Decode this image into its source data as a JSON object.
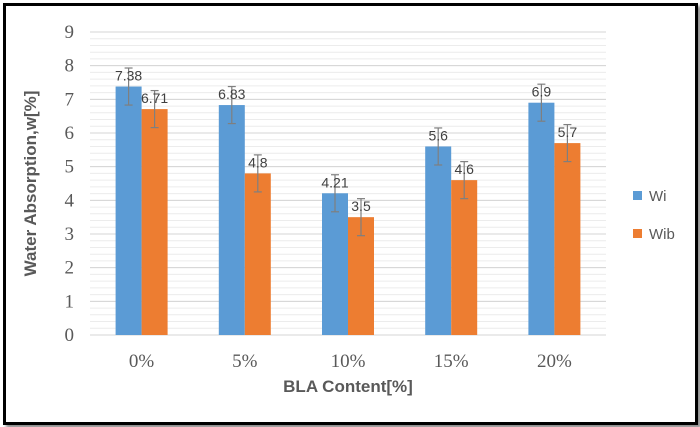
{
  "chart_data": {
    "type": "bar",
    "categories": [
      "0%",
      "5%",
      "10%",
      "15%",
      "20%"
    ],
    "series": [
      {
        "name": "Wi",
        "values": [
          7.38,
          6.83,
          4.21,
          5.6,
          6.9
        ],
        "labels": [
          "7.38",
          "6.83",
          "4.21",
          "5.6",
          "6.9"
        ],
        "error": [
          0.55,
          0.55,
          0.55,
          0.55,
          0.55
        ],
        "color": "#5b9bd5"
      },
      {
        "name": "Wib",
        "values": [
          6.71,
          4.8,
          3.5,
          4.6,
          5.7
        ],
        "labels": [
          "6.71",
          "4.8",
          "3.5",
          "4.6",
          "5.7"
        ],
        "error": [
          0.55,
          0.55,
          0.55,
          0.55,
          0.55
        ],
        "color": "#ed7d31"
      }
    ],
    "xlabel": "BLA Content[%]",
    "ylabel": "Water Absorption,w[%]",
    "ylim": [
      0,
      9
    ],
    "yticks": [
      "0",
      "1",
      "2",
      "3",
      "4",
      "5",
      "6",
      "7",
      "8",
      "9"
    ],
    "grid": true,
    "minor_grid": true,
    "legend": "right"
  }
}
